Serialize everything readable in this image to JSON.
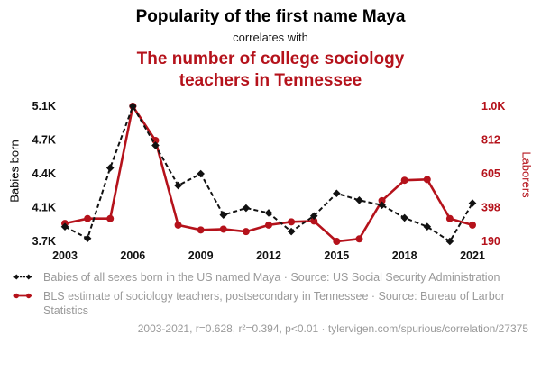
{
  "header": {
    "title_black": "Popularity of the first name Maya",
    "connector": "correlates with",
    "title_red": "The number of college sociology teachers in Tennessee"
  },
  "colors": {
    "accent_red": "#b5121b",
    "series_black": "#111111",
    "legend_gray": "#9a9a9a"
  },
  "chart_data": {
    "type": "line",
    "x": [
      2003,
      2004,
      2005,
      2006,
      2007,
      2008,
      2009,
      2010,
      2011,
      2012,
      2013,
      2014,
      2015,
      2016,
      2017,
      2018,
      2019,
      2020,
      2021
    ],
    "x_ticks": [
      "2003",
      "2006",
      "2009",
      "2012",
      "2015",
      "2018",
      "2021"
    ],
    "left_axis": {
      "label": "Babies born",
      "tick_labels": [
        "3.7K",
        "4.1K",
        "4.4K",
        "4.7K",
        "5.1K"
      ],
      "range": [
        3710,
        5090
      ]
    },
    "right_axis": {
      "label": "Laborers",
      "tick_labels": [
        "190",
        "398",
        "605",
        "812",
        "1.0K"
      ],
      "range": [
        190,
        1020
      ]
    },
    "series": [
      {
        "name": "Babies of all sexes born in the US named Maya",
        "axis": "left",
        "style": "dashed-diamond",
        "color": "#111111",
        "values": [
          3860,
          3740,
          4460,
          5090,
          4690,
          4280,
          4400,
          3980,
          4050,
          4000,
          3810,
          3970,
          4200,
          4130,
          4080,
          3950,
          3860,
          3710,
          4100
        ]
      },
      {
        "name": "BLS estimate of sociology teachers, postsecondary in Tennessee",
        "axis": "right",
        "style": "solid-circle",
        "color": "#b5121b",
        "values": [
          300,
          330,
          330,
          1020,
          810,
          290,
          260,
          265,
          250,
          290,
          310,
          315,
          190,
          205,
          440,
          565,
          570,
          330,
          290
        ]
      }
    ],
    "legend_position": "bottom",
    "grid": false
  },
  "legend": [
    {
      "marker": "black-diamond-dashed",
      "text": "Babies of all sexes born in the US named Maya · Source: US Social Security Administration"
    },
    {
      "marker": "red-circle-line",
      "text": "BLS estimate of sociology teachers, postsecondary in Tennessee · Source: Bureau of Larbor Statistics"
    }
  ],
  "footer": "2003-2021, r=0.628, r²=0.394, p<0.01 · tylervigen.com/spurious/correlation/27375"
}
